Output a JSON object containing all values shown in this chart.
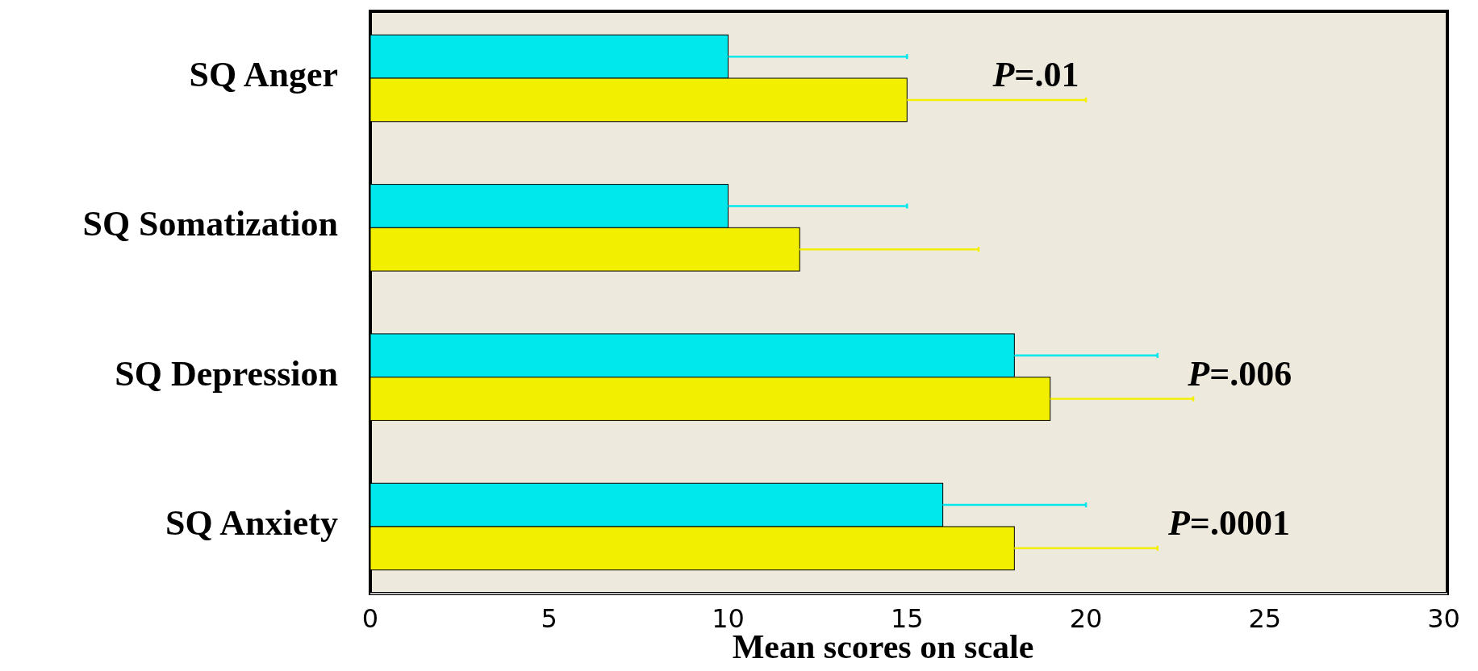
{
  "chart_data": {
    "type": "bar",
    "orientation": "horizontal",
    "xlabel": "Mean scores on scale",
    "categories": [
      "SQ Anger",
      "SQ Somatization",
      "SQ Depression",
      "SQ Anxiety"
    ],
    "series": [
      {
        "color": "#00e8ec",
        "values": [
          10,
          10,
          18,
          16
        ],
        "errors": [
          [
            10,
            15
          ],
          [
            10,
            15
          ],
          [
            18,
            22
          ],
          [
            16,
            20
          ]
        ]
      },
      {
        "color": "#f2f000",
        "values": [
          15,
          12,
          19,
          18
        ],
        "errors": [
          [
            15,
            20
          ],
          [
            12,
            17
          ],
          [
            19,
            23
          ],
          [
            18,
            22
          ]
        ]
      }
    ],
    "xlim": [
      0,
      30.1
    ],
    "xticks": [
      0,
      5,
      10,
      15,
      20,
      25,
      30
    ],
    "annotations": [
      "P=.01",
      "P=.006",
      "P=.0001"
    ],
    "grid": false
  }
}
